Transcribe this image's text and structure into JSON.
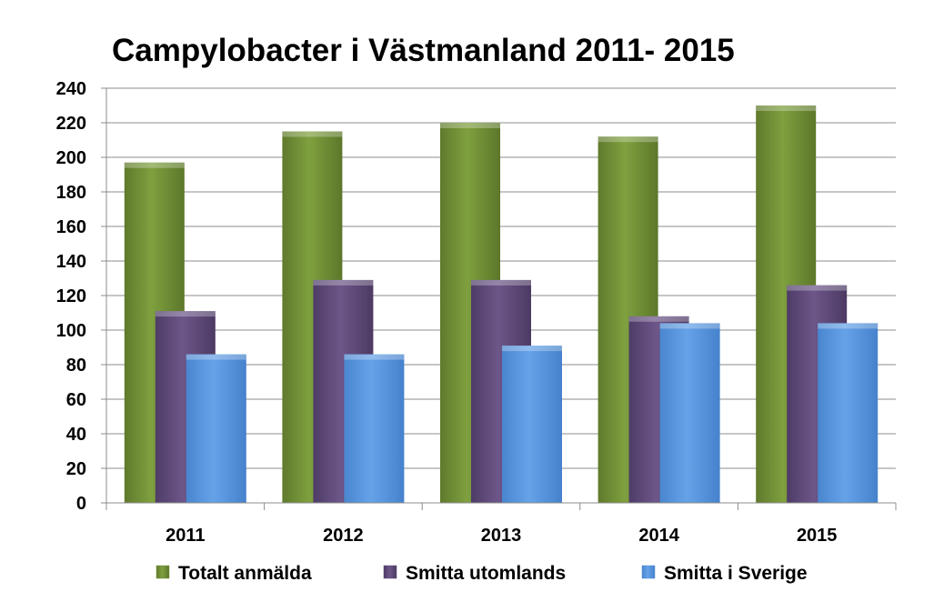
{
  "chart_data": {
    "type": "bar",
    "title": "Campylobacter i  Västmanland 2011- 2015",
    "categories": [
      "2011",
      "2012",
      "2013",
      "2014",
      "2015"
    ],
    "series": [
      {
        "name": "Totalt anmälda",
        "values": [
          197,
          215,
          220,
          212,
          230
        ],
        "color": "#77933c"
      },
      {
        "name": "Smitta utomlands",
        "values": [
          111,
          129,
          129,
          108,
          126
        ],
        "color": "#604a7b"
      },
      {
        "name": "Smitta i Sverige",
        "values": [
          86,
          86,
          91,
          104,
          104
        ],
        "color": "#558ed5"
      }
    ],
    "ylim": [
      0,
      240
    ],
    "yticks": [
      "0",
      "20",
      "40",
      "60",
      "80",
      "100",
      "120",
      "140",
      "160",
      "180",
      "200",
      "220",
      "240"
    ],
    "xlabel": "",
    "ylabel": "",
    "grid": true,
    "legend_position": "bottom"
  }
}
